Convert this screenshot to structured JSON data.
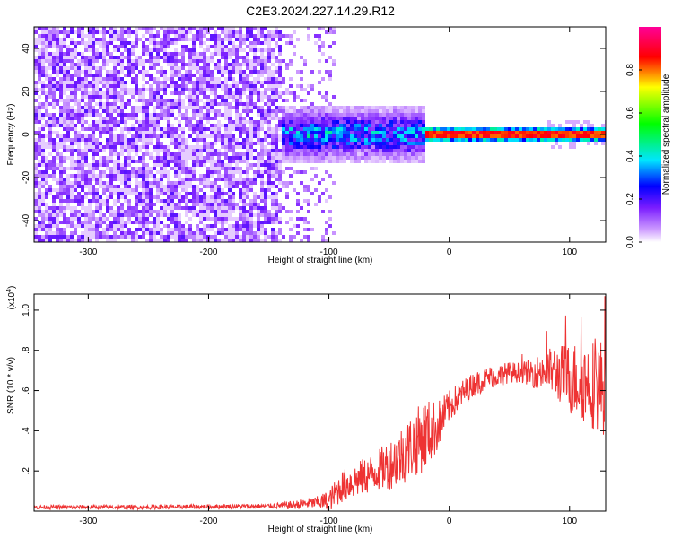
{
  "title": "C2E3.2024.227.14.29.R12",
  "chart_data": [
    {
      "type": "heatmap",
      "title": "C2E3.2024.227.14.29.R12",
      "xlabel": "Height of straight line (km)",
      "ylabel": "Frequency (Hz)",
      "xlim": [
        -345,
        130
      ],
      "ylim": [
        -50,
        50
      ],
      "xticks": [
        -300,
        -200,
        -100,
        0,
        100
      ],
      "yticks": [
        -40,
        -20,
        0,
        20,
        40
      ],
      "grid": false,
      "colorbar": {
        "label": "Normalized spectral amplitude",
        "ticks": [
          0.0,
          0.2,
          0.4,
          0.6,
          0.8
        ],
        "range": [
          0,
          1
        ],
        "colors": [
          "#ffffff",
          "#cc99ff",
          "#7a1cff",
          "#0000ff",
          "#00e5ff",
          "#00ff00",
          "#ffff00",
          "#ff0000",
          "#ff00a0"
        ]
      },
      "description_bands": [
        {
          "x_range": [
            -345,
            -140
          ],
          "frequency_range": [
            -50,
            50
          ],
          "amplitude": 0.08,
          "pattern": "noise"
        },
        {
          "x_range": [
            -140,
            -95
          ],
          "frequency_range": [
            -50,
            50
          ],
          "amplitude": 0.05,
          "pattern": "sparse noise"
        },
        {
          "x_range": [
            -140,
            -20
          ],
          "frequency_range": [
            -15,
            15
          ],
          "amplitude": 0.25,
          "pattern": "blue/cyan cluster"
        },
        {
          "x_range": [
            -20,
            130
          ],
          "frequency_range": [
            -2,
            2
          ],
          "amplitude": 0.9,
          "pattern": "narrow red line at 0 Hz"
        }
      ]
    },
    {
      "type": "line",
      "xlabel": "Height of straight line (km)",
      "ylabel": "SNR (10 * v/v)",
      "y_multiplier": "(x10",
      "y_multiplier_exp": "4",
      "y_multiplier_close": ")",
      "xlim": [
        -345,
        130
      ],
      "ylim": [
        0,
        1.08
      ],
      "xticks": [
        -300,
        -200,
        -100,
        0,
        100
      ],
      "yticks": [
        0.2,
        0.4,
        0.6,
        0.8,
        1.0
      ],
      "grid": false,
      "series": [
        {
          "color": "#ee3333",
          "trend": [
            [
              -345,
              0.02
            ],
            [
              -250,
              0.02
            ],
            [
              -150,
              0.025
            ],
            [
              -130,
              0.03
            ],
            [
              -100,
              0.05
            ],
            [
              -90,
              0.12
            ],
            [
              -75,
              0.16
            ],
            [
              -60,
              0.2
            ],
            [
              -45,
              0.25
            ],
            [
              -30,
              0.33
            ],
            [
              -20,
              0.38
            ],
            [
              -10,
              0.42
            ],
            [
              0,
              0.52
            ],
            [
              10,
              0.58
            ],
            [
              20,
              0.63
            ],
            [
              35,
              0.67
            ],
            [
              50,
              0.69
            ],
            [
              70,
              0.69
            ],
            [
              85,
              0.7
            ],
            [
              100,
              0.66
            ],
            [
              115,
              0.64
            ],
            [
              130,
              0.62
            ]
          ],
          "noise_amplitude": [
            [
              -345,
              0.01
            ],
            [
              -150,
              0.012
            ],
            [
              -110,
              0.03
            ],
            [
              -90,
              0.08
            ],
            [
              -60,
              0.1
            ],
            [
              -40,
              0.15
            ],
            [
              -20,
              0.18
            ],
            [
              0,
              0.08
            ],
            [
              20,
              0.06
            ],
            [
              60,
              0.05
            ],
            [
              80,
              0.1
            ],
            [
              100,
              0.18
            ],
            [
              130,
              0.25
            ]
          ]
        }
      ]
    }
  ]
}
